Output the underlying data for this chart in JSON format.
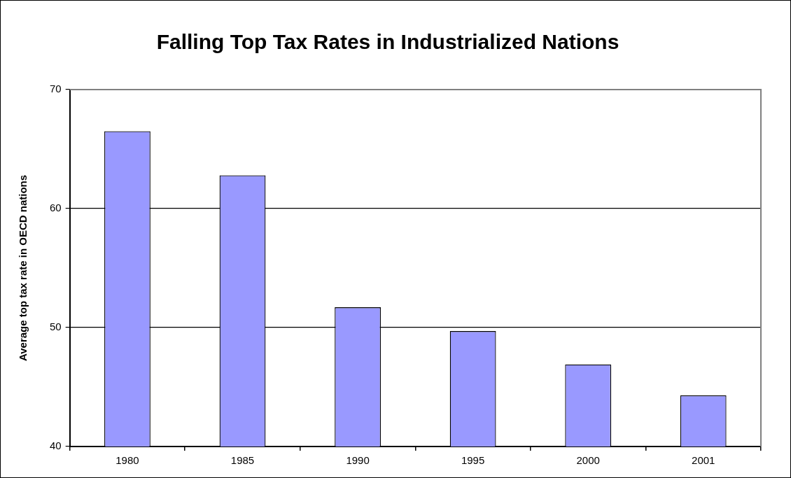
{
  "chart_data": {
    "type": "bar",
    "title": "Falling Top Tax Rates in Industrialized Nations",
    "ylabel": "Average top tax rate in OECD nations",
    "categories": [
      "1980",
      "1985",
      "1990",
      "1995",
      "2000",
      "2001"
    ],
    "values": [
      66.5,
      62.8,
      51.7,
      49.7,
      46.9,
      44.3
    ],
    "color": "#9999ff",
    "ylim": [
      40,
      70
    ],
    "yticks": [
      40,
      50,
      60,
      70
    ],
    "grid": "y",
    "legend": false
  }
}
